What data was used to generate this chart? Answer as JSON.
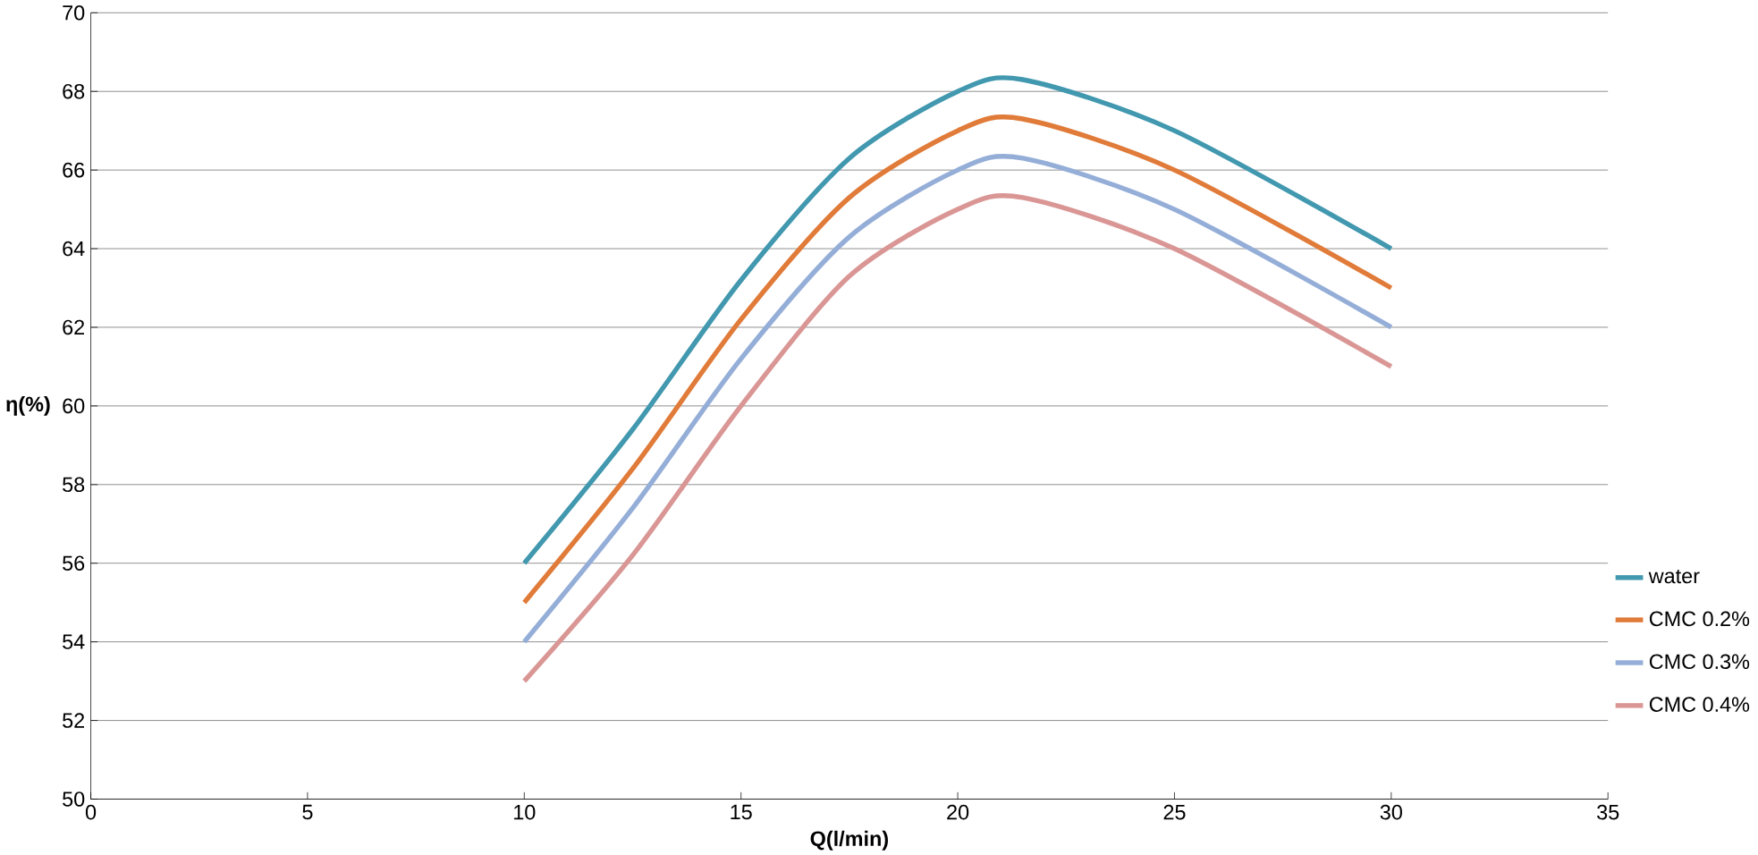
{
  "chart_data": {
    "type": "line",
    "xlabel": "Q(l/min)",
    "ylabel": "η(%)",
    "xlim": [
      0,
      35
    ],
    "xticks": [
      0,
      5,
      10,
      15,
      20,
      25,
      30,
      35
    ],
    "ylim": [
      50,
      70
    ],
    "yticks": [
      50,
      52,
      54,
      56,
      58,
      60,
      62,
      64,
      66,
      68,
      70
    ],
    "grid": "y",
    "legend": "right",
    "marker": "none",
    "line_style": "solid",
    "series": [
      {
        "name": "water",
        "color": "#4198af",
        "x": [
          10,
          12.5,
          15,
          17.5,
          20,
          21.5,
          25,
          30
        ],
        "values": [
          56,
          59.4,
          63.2,
          66.3,
          68,
          68.3,
          67,
          64
        ]
      },
      {
        "name": "CMC 0.2%",
        "color": "#e07b39",
        "x": [
          10,
          12.5,
          15,
          17.5,
          20,
          21.5,
          25,
          30
        ],
        "values": [
          55,
          58.4,
          62.2,
          65.3,
          67,
          67.3,
          66,
          63
        ]
      },
      {
        "name": "CMC 0.3%",
        "color": "#94aed8",
        "x": [
          10,
          12.5,
          15,
          17.5,
          20,
          21.5,
          25,
          30
        ],
        "values": [
          54,
          57.4,
          61.2,
          64.3,
          66,
          66.3,
          65,
          62
        ]
      },
      {
        "name": "CMC 0.4%",
        "color": "#d99694",
        "x": [
          10,
          12.5,
          15,
          17.5,
          20,
          21.5,
          25,
          30
        ],
        "values": [
          53,
          56.2,
          60,
          63.3,
          65,
          65.3,
          64,
          61
        ]
      }
    ]
  }
}
